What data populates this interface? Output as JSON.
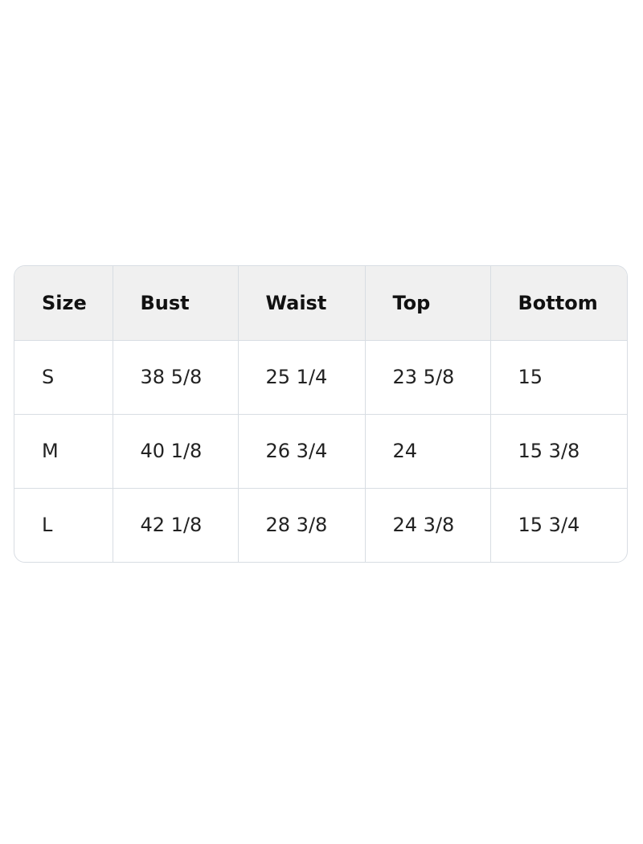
{
  "table": {
    "header": [
      "Size",
      "Bust",
      "Waist",
      "Top",
      "Bottom"
    ],
    "rows": [
      [
        "S",
        "38 5/8",
        "25 1/4",
        "23 5/8",
        "15"
      ],
      [
        "M",
        "40 1/8",
        "26 3/4",
        "24",
        "15 3/8"
      ],
      [
        "L",
        "42 1/8",
        "28 3/8",
        "24 3/8",
        "15 3/4"
      ]
    ]
  }
}
